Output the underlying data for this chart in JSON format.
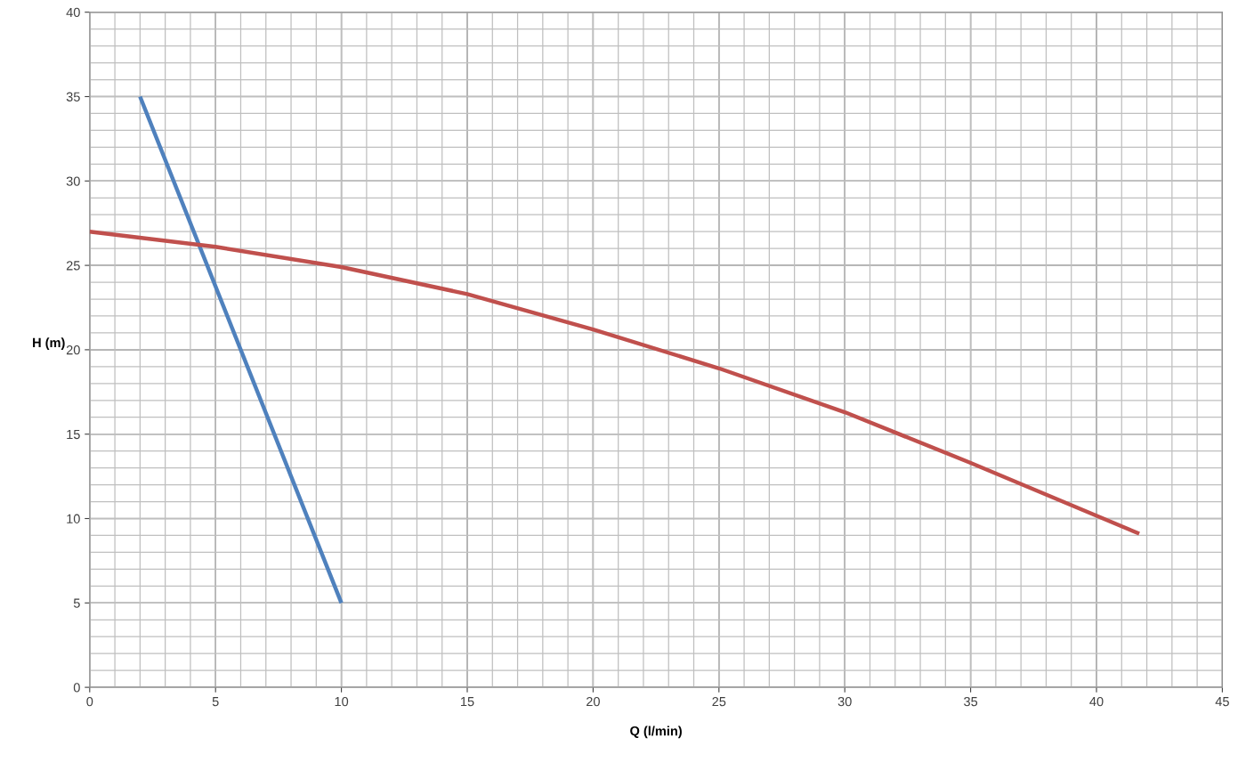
{
  "chart_data": {
    "type": "line",
    "xlabel": "Q (l/min)",
    "ylabel": "H (m)",
    "xlim": [
      0,
      45
    ],
    "xticks": [
      0,
      5,
      10,
      15,
      20,
      25,
      30,
      35,
      40,
      45
    ],
    "ylim": [
      0,
      40
    ],
    "yticks": [
      0,
      5,
      10,
      15,
      20,
      25,
      30,
      35,
      40
    ],
    "grid": true,
    "line_style": "solid",
    "marker": "none",
    "series": [
      {
        "color": "#4f81bd",
        "x": [
          2,
          10
        ],
        "values": [
          35,
          5
        ]
      },
      {
        "color": "#c0504d",
        "x": [
          0,
          5,
          10,
          15,
          20,
          25,
          30,
          35,
          41.7
        ],
        "values": [
          27,
          26.1,
          24.9,
          23.3,
          21.2,
          18.9,
          16.3,
          13.3,
          9.1
        ]
      }
    ]
  }
}
